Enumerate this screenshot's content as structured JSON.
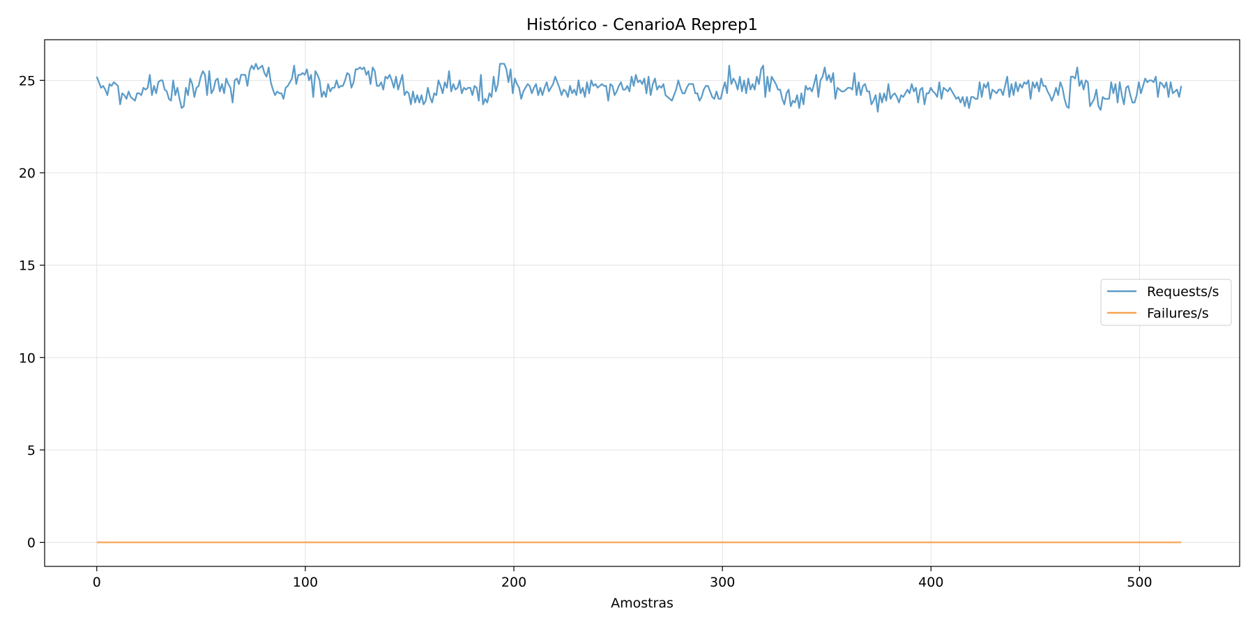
{
  "chart_data": {
    "type": "line",
    "title": "Histórico - CenarioA Reprep1",
    "xlabel": "Amostras",
    "ylabel": "",
    "xlim": [
      -25,
      548
    ],
    "ylim": [
      -1.3,
      27.2
    ],
    "xticks": [
      0,
      100,
      200,
      300,
      400,
      500
    ],
    "yticks": [
      0,
      5,
      10,
      15,
      20,
      25
    ],
    "grid": true,
    "legend": "center-right",
    "series": [
      {
        "name": "Requests/s",
        "color": "#5b9bc8",
        "x_range": [
          0,
          520
        ],
        "values": [
          25.2,
          24.9,
          24.6,
          24.7,
          24.5,
          24.2,
          24.8,
          24.7,
          24.9,
          24.8,
          24.7,
          23.7,
          24.3,
          24.2,
          24.0,
          24.4,
          24.1,
          24.0,
          23.9,
          24.3,
          24.3,
          24.2,
          24.6,
          24.5,
          24.6,
          25.3,
          24.2,
          24.7,
          24.3,
          24.9,
          25.0,
          25.0,
          24.5,
          24.4,
          24.0,
          23.9,
          25.0,
          24.2,
          24.6,
          24.0,
          23.5,
          23.6,
          24.6,
          24.2,
          25.1,
          24.8,
          24.1,
          24.6,
          24.7,
          25.2,
          25.5,
          25.3,
          24.2,
          25.5,
          24.3,
          24.5,
          25.0,
          25.1,
          24.4,
          24.8,
          24.3,
          25.1,
          24.8,
          24.6,
          23.8,
          25.0,
          25.1,
          24.8,
          25.3,
          25.3,
          25.3,
          24.7,
          25.5,
          25.8,
          25.6,
          25.9,
          25.6,
          25.7,
          25.8,
          25.4,
          25.2,
          25.7,
          24.9,
          24.5,
          24.2,
          24.4,
          24.3,
          24.3,
          24.0,
          24.6,
          24.7,
          24.9,
          25.1,
          25.8,
          24.8,
          25.3,
          25.3,
          25.4,
          25.3,
          25.6,
          25.0,
          25.3,
          24.1,
          25.5,
          25.3,
          25.0,
          24.1,
          24.4,
          24.1,
          24.8,
          24.4,
          24.6,
          24.6,
          25.0,
          24.6,
          24.7,
          24.7,
          25.0,
          25.4,
          25.3,
          24.6,
          24.9,
          25.6,
          25.6,
          25.7,
          25.6,
          25.7,
          25.3,
          25.5,
          24.8,
          25.7,
          25.5,
          24.7,
          24.7,
          24.9,
          24.5,
          25.2,
          25.1,
          25.3,
          25.0,
          24.6,
          25.2,
          24.5,
          24.9,
          25.3,
          24.2,
          24.4,
          24.3,
          23.7,
          24.4,
          23.8,
          24.2,
          23.8,
          24.2,
          23.7,
          23.9,
          24.6,
          24.1,
          23.8,
          24.3,
          24.2,
          25.0,
          24.7,
          24.3,
          24.9,
          24.6,
          25.5,
          24.4,
          24.8,
          24.5,
          24.6,
          25.0,
          24.3,
          24.6,
          24.5,
          24.6,
          24.6,
          24.2,
          24.7,
          24.6,
          23.9,
          25.3,
          23.7,
          24.0,
          23.8,
          24.3,
          24.1,
          25.2,
          24.4,
          24.8,
          25.9,
          25.9,
          25.9,
          25.6,
          24.9,
          25.6,
          24.3,
          25.1,
          24.8,
          24.6,
          24.0,
          24.4,
          24.6,
          24.8,
          24.7,
          24.3,
          24.6,
          24.8,
          24.2,
          24.6,
          24.2,
          24.6,
          24.9,
          24.4,
          24.6,
          24.8,
          25.2,
          24.9,
          24.6,
          24.2,
          24.5,
          24.4,
          24.1,
          24.7,
          24.3,
          24.5,
          24.2,
          25.0,
          24.3,
          24.6,
          24.1,
          24.9,
          24.3,
          25.0,
          24.7,
          24.8,
          24.6,
          24.7,
          24.8,
          24.7,
          24.7,
          23.9,
          24.8,
          24.7,
          24.2,
          24.4,
          24.7,
          24.9,
          24.5,
          24.5,
          24.7,
          24.4,
          25.2,
          24.7,
          25.3,
          24.9,
          25.0,
          24.8,
          25.1,
          24.3,
          25.2,
          24.2,
          24.8,
          25.1,
          24.5,
          24.7,
          24.6,
          24.8,
          24.2,
          24.1,
          24.0,
          23.9,
          24.2,
          24.5,
          25.0,
          24.6,
          24.3,
          24.3,
          24.6,
          24.8,
          24.8,
          24.8,
          24.3,
          24.3,
          23.9,
          24.1,
          24.5,
          24.7,
          24.7,
          24.4,
          24.1,
          24.0,
          24.4,
          24.0,
          24.0,
          24.5,
          24.9,
          24.3,
          25.8,
          24.8,
          25.1,
          24.9,
          24.5,
          25.2,
          24.4,
          25.0,
          24.3,
          25.1,
          24.5,
          24.8,
          24.5,
          25.2,
          24.8,
          25.6,
          25.8,
          24.1,
          25.2,
          24.4,
          25.2,
          25.0,
          24.8,
          24.5,
          24.5,
          24.0,
          23.7,
          24.3,
          24.5,
          23.6,
          23.9,
          23.8,
          24.2,
          23.5,
          24.3,
          23.7,
          24.7,
          24.5,
          24.6,
          24.4,
          24.8,
          25.3,
          24.1,
          25.0,
          25.2,
          25.7,
          25.0,
          25.3,
          24.9,
          25.4,
          24.0,
          24.6,
          24.5,
          24.4,
          24.4,
          24.5,
          24.6,
          24.6,
          24.5,
          25.4,
          24.2,
          24.9,
          24.2,
          24.7,
          24.8,
          24.4,
          24.4,
          23.7,
          23.9,
          24.2,
          23.3,
          24.3,
          23.8,
          24.3,
          23.9,
          24.8,
          24.0,
          24.2,
          24.3,
          24.1,
          23.8,
          24.2,
          24.1,
          24.3,
          24.5,
          24.3,
          24.8,
          24.4,
          24.6,
          23.8,
          24.5,
          24.6,
          23.7,
          24.3,
          24.3,
          24.6,
          24.4,
          24.3,
          24.1,
          24.9,
          24.0,
          24.6,
          24.5,
          24.4,
          24.6,
          24.4,
          24.2,
          24.0,
          24.1,
          23.8,
          24.1,
          23.6,
          24.1,
          23.5,
          24.1,
          24.1,
          24.0,
          24.0,
          24.9,
          24.1,
          24.8,
          24.6,
          24.9,
          24.0,
          24.5,
          24.4,
          24.3,
          24.5,
          24.5,
          24.2,
          24.7,
          25.2,
          24.1,
          24.8,
          24.2,
          24.9,
          24.4,
          24.8,
          24.6,
          24.9,
          24.8,
          25.0,
          24.0,
          24.9,
          24.6,
          24.9,
          24.4,
          25.1,
          24.7,
          24.7,
          24.4,
          24.2,
          23.9,
          24.2,
          24.6,
          24.2,
          24.9,
          24.6,
          24.0,
          23.6,
          23.5,
          25.2,
          25.2,
          25.1,
          25.7,
          24.7,
          25.0,
          24.5,
          25.0,
          24.9,
          23.6,
          23.8,
          24.0,
          24.5,
          23.6,
          23.4,
          24.1,
          24.0,
          24.0,
          24.0,
          24.9,
          24.3,
          24.8,
          23.8,
          24.9,
          24.2,
          23.7,
          24.6,
          24.7,
          24.2,
          23.8,
          23.8,
          24.2,
          24.9,
          24.3,
          24.7,
          25.1,
          24.9,
          25.0,
          25.0,
          24.9,
          25.2,
          24.1,
          24.9,
          24.8,
          24.6,
          24.9,
          24.1,
          24.9,
          24.3,
          24.4,
          24.5,
          24.1,
          24.7
        ]
      },
      {
        "name": "Failures/s",
        "color": "#f7a350",
        "x": [
          0,
          520
        ],
        "values": [
          0,
          0
        ]
      }
    ]
  }
}
